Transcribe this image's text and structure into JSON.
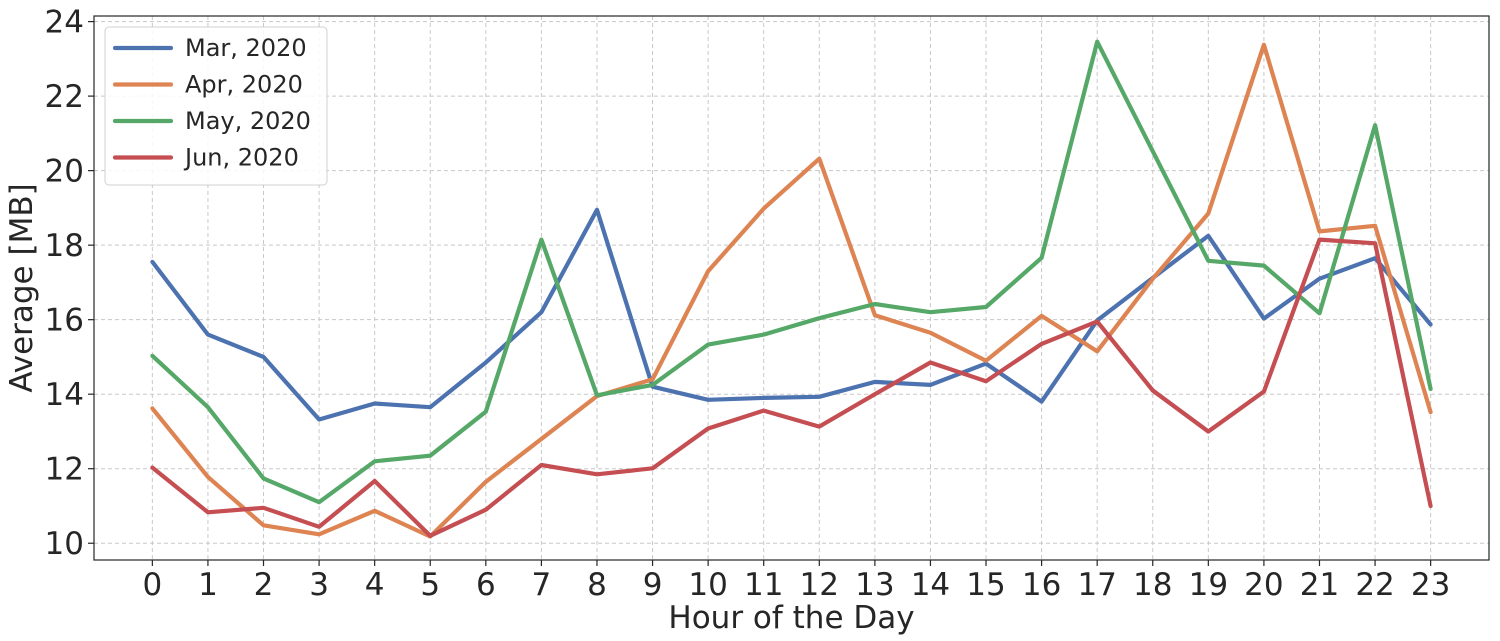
{
  "chart_data": {
    "type": "line",
    "xlabel": "Hour of the Day",
    "ylabel": "Average [MB]",
    "x": [
      0,
      1,
      2,
      3,
      4,
      5,
      6,
      7,
      8,
      9,
      10,
      11,
      12,
      13,
      14,
      15,
      16,
      17,
      18,
      19,
      20,
      21,
      22,
      23
    ],
    "x_tick_labels": [
      "0",
      "1",
      "2",
      "3",
      "4",
      "5",
      "6",
      "7",
      "8",
      "9",
      "10",
      "11",
      "12",
      "13",
      "14",
      "15",
      "16",
      "17",
      "18",
      "19",
      "20",
      "21",
      "22",
      "23"
    ],
    "xlim": [
      -1.05,
      24.05
    ],
    "ylim": [
      9.55,
      24.15
    ],
    "y_ticks": [
      10,
      12,
      14,
      16,
      18,
      20,
      22,
      24
    ],
    "y_tick_labels": [
      "10",
      "12",
      "14",
      "16",
      "18",
      "20",
      "22",
      "24"
    ],
    "grid": true,
    "legend_position": "top-left",
    "series": [
      {
        "name": "Mar, 2020",
        "color": "#4c72b0",
        "values": [
          17.55,
          15.6,
          15.0,
          13.32,
          13.75,
          13.65,
          14.85,
          16.2,
          18.95,
          14.2,
          13.85,
          13.9,
          13.93,
          14.33,
          14.25,
          14.82,
          13.8,
          15.98,
          17.12,
          18.25,
          16.03,
          17.1,
          17.65,
          15.87
        ]
      },
      {
        "name": "Apr, 2020",
        "color": "#dd8452",
        "values": [
          13.62,
          11.78,
          10.48,
          10.24,
          10.87,
          10.18,
          11.65,
          12.8,
          13.95,
          14.4,
          17.3,
          18.98,
          20.32,
          16.12,
          15.65,
          14.9,
          16.1,
          15.15,
          17.1,
          18.85,
          23.38,
          18.37,
          18.52,
          13.52
        ]
      },
      {
        "name": "May, 2020",
        "color": "#55a868",
        "values": [
          15.03,
          13.65,
          11.74,
          11.1,
          12.2,
          12.35,
          13.53,
          18.15,
          13.97,
          14.25,
          15.33,
          15.6,
          16.04,
          16.42,
          16.2,
          16.34,
          17.66,
          23.46,
          20.52,
          17.58,
          17.45,
          16.17,
          21.22,
          14.14
        ]
      },
      {
        "name": "Jun, 2020",
        "color": "#c44e52",
        "values": [
          12.03,
          10.83,
          10.95,
          10.44,
          11.67,
          10.2,
          10.9,
          12.1,
          11.85,
          12.01,
          13.08,
          13.56,
          13.13,
          14.0,
          14.85,
          14.35,
          15.35,
          15.95,
          14.1,
          13.0,
          14.07,
          18.15,
          18.05,
          11.0
        ]
      }
    ]
  }
}
